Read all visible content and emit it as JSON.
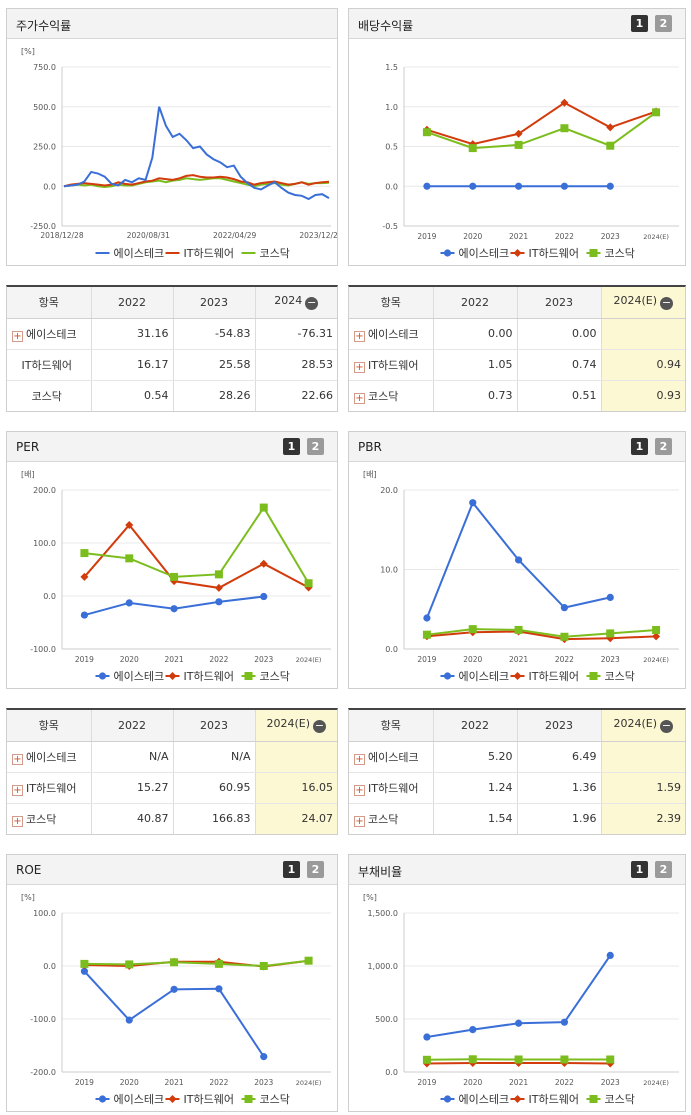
{
  "colors": {
    "s0": "#3a6fd8",
    "s1": "#d23b0c",
    "s2": "#7cbd1e"
  },
  "icons": {
    "toggle_one": "number-one-icon",
    "toggle_two": "number-two-icon",
    "expand": "plus-icon",
    "collapse": "minus-circle-icon"
  },
  "toggles": {
    "one": "1",
    "two": "2"
  },
  "legend": {
    "s0": "에이스테크",
    "s1": "IT하드웨어",
    "s2": "코스닥"
  },
  "chart_data": [
    {
      "id": "stock-return",
      "title": "주가수익률",
      "unit": "[%]",
      "type": "line",
      "x_tick_labels": [
        "2018/12/28",
        "2020/08/31",
        "2022/04/29",
        "2023/12/28"
      ],
      "y_tick_labels": [
        "750.0",
        "500.0",
        "250.0",
        "0.0",
        "-250.0"
      ],
      "ylim": [
        -250,
        750
      ],
      "series": [
        {
          "name": "에이스테크",
          "values": [
            0,
            5,
            10,
            30,
            90,
            80,
            60,
            15,
            5,
            40,
            25,
            50,
            40,
            180,
            500,
            380,
            310,
            330,
            290,
            240,
            250,
            200,
            170,
            150,
            120,
            130,
            60,
            20,
            -10,
            -20,
            5,
            25,
            -10,
            -40,
            -55,
            -60,
            -80,
            -55,
            -50,
            -75
          ]
        },
        {
          "name": "IT하드웨어",
          "values": [
            0,
            10,
            15,
            20,
            15,
            10,
            5,
            10,
            25,
            15,
            10,
            20,
            30,
            35,
            50,
            45,
            40,
            50,
            65,
            70,
            60,
            55,
            55,
            60,
            55,
            45,
            30,
            25,
            10,
            20,
            25,
            30,
            20,
            10,
            15,
            25,
            10,
            20,
            25,
            28
          ]
        },
        {
          "name": "코스닥",
          "values": [
            0,
            5,
            10,
            5,
            10,
            0,
            -5,
            0,
            10,
            5,
            5,
            15,
            25,
            30,
            35,
            25,
            35,
            40,
            50,
            45,
            40,
            45,
            50,
            50,
            40,
            30,
            20,
            10,
            0,
            10,
            15,
            20,
            10,
            5,
            15,
            25,
            15,
            20,
            20,
            22
          ]
        }
      ]
    },
    {
      "id": "dividend",
      "title": "배당수익률",
      "type": "line",
      "categories": [
        "2019",
        "2020",
        "2021",
        "2022",
        "2023",
        "2024(E)"
      ],
      "y_tick_labels": [
        "1.5",
        "1.0",
        "0.5",
        "0.0",
        "-0.5"
      ],
      "ylim": [
        -0.5,
        1.5
      ],
      "series": [
        {
          "name": "에이스테크",
          "values": [
            0.0,
            0.0,
            0.0,
            0.0,
            0.0,
            null
          ]
        },
        {
          "name": "IT하드웨어",
          "values": [
            0.71,
            0.53,
            0.66,
            1.05,
            0.74,
            0.94
          ]
        },
        {
          "name": "코스닥",
          "values": [
            0.68,
            0.48,
            0.52,
            0.73,
            0.51,
            0.93
          ]
        }
      ]
    },
    {
      "id": "per",
      "title": "PER",
      "unit": "[배]",
      "type": "line",
      "categories": [
        "2019",
        "2020",
        "2021",
        "2022",
        "2023",
        "2024(E)"
      ],
      "y_tick_labels": [
        "200.0",
        "100.0",
        "0.0",
        "-100.0"
      ],
      "ylim": [
        -100,
        200
      ],
      "series": [
        {
          "name": "에이스테크",
          "values": [
            -36,
            -13,
            -24,
            -11,
            -1,
            null
          ]
        },
        {
          "name": "IT하드웨어",
          "values": [
            36,
            134,
            28,
            15.27,
            60.95,
            16.05
          ]
        },
        {
          "name": "코스닥",
          "values": [
            81,
            71,
            36,
            40.87,
            166.83,
            24.07
          ]
        }
      ]
    },
    {
      "id": "pbr",
      "title": "PBR",
      "unit": "[배]",
      "type": "line",
      "categories": [
        "2019",
        "2020",
        "2021",
        "2022",
        "2023",
        "2024(E)"
      ],
      "y_tick_labels": [
        "20.0",
        "10.0",
        "0.0"
      ],
      "ylim": [
        0,
        20
      ],
      "series": [
        {
          "name": "에이스테크",
          "values": [
            3.9,
            18.4,
            11.2,
            5.2,
            6.49,
            null
          ]
        },
        {
          "name": "IT하드웨어",
          "values": [
            1.6,
            2.1,
            2.2,
            1.24,
            1.36,
            1.59
          ]
        },
        {
          "name": "코스닥",
          "values": [
            1.8,
            2.5,
            2.4,
            1.54,
            1.96,
            2.39
          ]
        }
      ]
    },
    {
      "id": "roe",
      "title": "ROE",
      "unit": "[%]",
      "type": "line",
      "categories": [
        "2019",
        "2020",
        "2021",
        "2022",
        "2023",
        "2024(E)"
      ],
      "y_tick_labels": [
        "100.0",
        "0.0",
        "-100.0",
        "-200.0"
      ],
      "ylim": [
        -200,
        100
      ],
      "series": [
        {
          "name": "에이스테크",
          "values": [
            -10,
            -102,
            -44,
            -43,
            -171,
            null
          ]
        },
        {
          "name": "IT하드웨어",
          "values": [
            2,
            0,
            8,
            8,
            -1,
            10
          ]
        },
        {
          "name": "코스닥",
          "values": [
            4,
            3,
            7,
            4,
            0,
            10
          ]
        }
      ]
    },
    {
      "id": "debt",
      "title": "부채비율",
      "unit": "[%]",
      "type": "line",
      "categories": [
        "2019",
        "2020",
        "2021",
        "2022",
        "2023",
        "2024(E)"
      ],
      "y_tick_labels": [
        "1,500.0",
        "1,000.0",
        "500.0",
        "0.0"
      ],
      "ylim": [
        0,
        1500
      ],
      "series": [
        {
          "name": "에이스테크",
          "values": [
            330,
            400,
            460,
            470,
            1100,
            null
          ]
        },
        {
          "name": "IT하드웨어",
          "values": [
            80,
            85,
            85,
            85,
            80,
            null
          ]
        },
        {
          "name": "코스닥",
          "values": [
            115,
            120,
            118,
            118,
            118,
            null
          ]
        }
      ]
    }
  ],
  "tables": {
    "stock": {
      "headers": [
        "항목",
        "2022",
        "2023",
        "2024"
      ],
      "rows": [
        {
          "name": "에이스테크",
          "values": [
            "31.16",
            "-54.83",
            "-76.31"
          ]
        },
        {
          "name": "IT하드웨어",
          "values": [
            "16.17",
            "25.58",
            "28.53"
          ]
        },
        {
          "name": "코스닥",
          "values": [
            "0.54",
            "28.26",
            "22.66"
          ]
        }
      ]
    },
    "dividend": {
      "headers": [
        "항목",
        "2022",
        "2023",
        "2024(E)"
      ],
      "rows": [
        {
          "name": "에이스테크",
          "values": [
            "0.00",
            "0.00",
            ""
          ]
        },
        {
          "name": "IT하드웨어",
          "values": [
            "1.05",
            "0.74",
            "0.94"
          ]
        },
        {
          "name": "코스닥",
          "values": [
            "0.73",
            "0.51",
            "0.93"
          ]
        }
      ]
    },
    "per": {
      "headers": [
        "항목",
        "2022",
        "2023",
        "2024(E)"
      ],
      "rows": [
        {
          "name": "에이스테크",
          "values": [
            "N/A",
            "N/A",
            ""
          ]
        },
        {
          "name": "IT하드웨어",
          "values": [
            "15.27",
            "60.95",
            "16.05"
          ]
        },
        {
          "name": "코스닥",
          "values": [
            "40.87",
            "166.83",
            "24.07"
          ]
        }
      ]
    },
    "pbr": {
      "headers": [
        "항목",
        "2022",
        "2023",
        "2024(E)"
      ],
      "rows": [
        {
          "name": "에이스테크",
          "values": [
            "5.20",
            "6.49",
            ""
          ]
        },
        {
          "name": "IT하드웨어",
          "values": [
            "1.24",
            "1.36",
            "1.59"
          ]
        },
        {
          "name": "코스닥",
          "values": [
            "1.54",
            "1.96",
            "2.39"
          ]
        }
      ]
    }
  }
}
